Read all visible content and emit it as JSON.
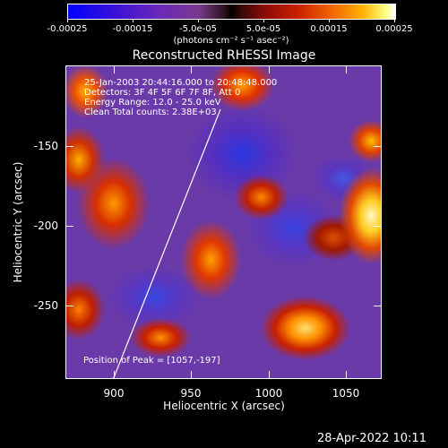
{
  "colorbar": {
    "tick_labels": [
      "-0.00025",
      "-0.00015",
      "-5.0e-05",
      "5.0e-05",
      "0.00015",
      "0.00025"
    ],
    "units": "(photons cm⁻² s⁻¹ asec⁻²)"
  },
  "plot": {
    "title": "Reconstructed RHESSI Image",
    "info_lines": [
      "25-Jan-2003 20:44:16.000 to 20:48:48.000",
      "Detectors: 3F 4F 5F 6F 7F 8F, Att 0",
      "Energy Range: 12.0 - 25.0 keV",
      "Clean    Total counts: 2.38E+03"
    ],
    "peak_text": "Position of Peak = [1057,-197]"
  },
  "x_axis": {
    "label": "Heliocentric X (arcsec)",
    "ticks": [
      "900",
      "950",
      "1000",
      "1050"
    ]
  },
  "y_axis": {
    "label": "Heliocentric Y (arcsec)",
    "ticks": [
      "-150",
      "-200",
      "-250"
    ]
  },
  "footer": {
    "timestamp": "28-Apr-2022 10:11"
  },
  "colors": {
    "background": "#000000",
    "foreground": "#ffffff",
    "colormap_low": "#0000ff",
    "colormap_mid": "#000000",
    "colormap_high": "#ffffff"
  }
}
